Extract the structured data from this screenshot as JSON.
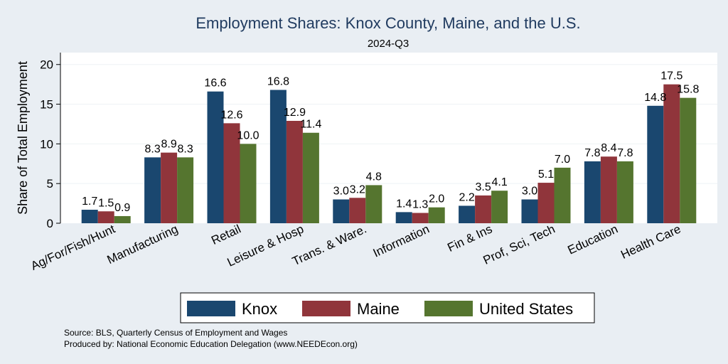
{
  "chart_data": {
    "type": "bar",
    "title": "Employment Shares: Knox County, Maine, and the U.S.",
    "subtitle": "2024-Q3",
    "ylabel": "Share of Total Employment",
    "xlabel": "",
    "ylim": [
      0,
      21.5
    ],
    "yticks": [
      0,
      5,
      10,
      15,
      20
    ],
    "categories": [
      "Ag/For/Fish/Hunt",
      "Manufacturing",
      "Retail",
      "Leisure & Hosp",
      "Trans. & Ware.",
      "Information",
      "Fin & Ins",
      "Prof, Sci, Tech",
      "Education",
      "Health Care"
    ],
    "series": [
      {
        "name": "Knox",
        "color": "#1a476f",
        "values": [
          1.7,
          8.3,
          16.6,
          16.8,
          3.0,
          1.4,
          2.2,
          3.0,
          7.8,
          14.8
        ],
        "labels": [
          "1.7",
          "8.3",
          "16.6",
          "16.8",
          "3.0",
          "1.4",
          "2.2",
          "3.0",
          "7.8",
          "14.8"
        ]
      },
      {
        "name": "Maine",
        "color": "#90353b",
        "values": [
          1.5,
          8.9,
          12.6,
          12.9,
          3.2,
          1.3,
          3.5,
          5.1,
          8.4,
          17.5
        ],
        "labels": [
          "1.5",
          "8.9",
          "12.6",
          "12.9",
          "3.2",
          "1.3",
          "3.5",
          "5.1",
          "8.4",
          "17.5"
        ]
      },
      {
        "name": "United States",
        "color": "#55752f",
        "values": [
          0.9,
          8.3,
          10.0,
          11.4,
          4.8,
          2.0,
          4.1,
          7.0,
          7.8,
          15.8
        ],
        "labels": [
          "0.9",
          "8.3",
          "10.0",
          "11.4",
          "4.8",
          "2.0",
          "4.1",
          "7.0",
          "7.8",
          "15.8"
        ]
      }
    ],
    "grid": true,
    "legend": "bottom",
    "source_lines": [
      "Source: BLS, Quarterly Census of Employment and Wages",
      "Produced by: National Economic Education Delegation (www.NEEDEcon.org)"
    ]
  }
}
